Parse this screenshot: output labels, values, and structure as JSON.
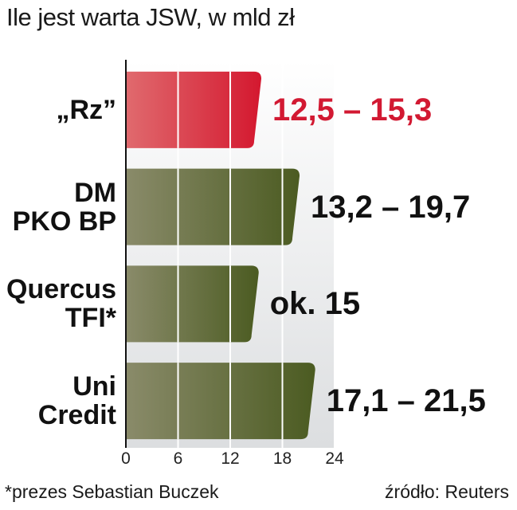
{
  "chart_data": {
    "type": "bar",
    "title": "Ile jest warta JSW, w mld zł",
    "categories": [
      [
        "„Rz”"
      ],
      [
        "DM",
        "PKO BP"
      ],
      [
        "Quercus",
        "TFI*"
      ],
      [
        "Uni",
        "Credit"
      ]
    ],
    "values": [
      15.3,
      19.7,
      15,
      21.5
    ],
    "value_labels": [
      "12,5 – 15,3",
      "13,2 – 19,7",
      "ok. 15",
      "17,1 – 21,5"
    ],
    "xlim": [
      0,
      24
    ],
    "xticks": [
      "0",
      "6",
      "12",
      "18",
      "24"
    ],
    "grid": true,
    "colors": {
      "highlight": "#d9303f",
      "default": "#5f6a2c",
      "highlight_label": "#d21932",
      "default_label": "#111111"
    }
  },
  "footnote": "*prezes Sebastian Buczek",
  "source": "źródło: Reuters"
}
